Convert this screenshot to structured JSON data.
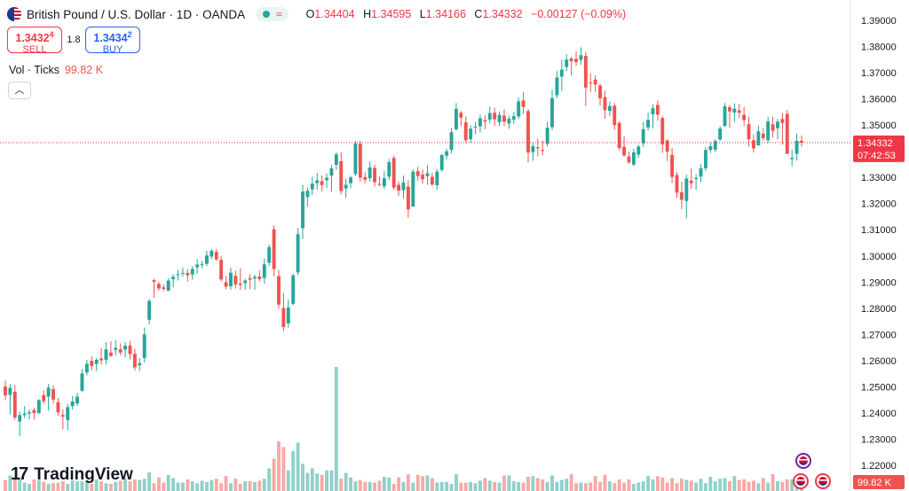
{
  "header": {
    "symbol_title": "British Pound / U.S. Dollar · 1D · OANDA",
    "ohlc": {
      "o_label": "O",
      "o": "1.34404",
      "h_label": "H",
      "h": "1.34595",
      "l_label": "L",
      "l": "1.34166",
      "c_label": "C",
      "c": "1.34332",
      "change": "−0.00127 (−0.09%)"
    }
  },
  "trade": {
    "sell_price": "1.3432",
    "sell_sup": "4",
    "sell_label": "SELL",
    "spread": "1.8",
    "buy_price": "1.3434",
    "buy_sup": "2",
    "buy_label": "BUY"
  },
  "volume_legend": {
    "label": "Vol · Ticks",
    "value": "99.82 K"
  },
  "icons": {
    "collapse": "chevron-up-icon",
    "symbol": "gbp-usd-flag-icon",
    "event": "us-flag-event-icon"
  },
  "price_axis": {
    "last_price": "1.34332",
    "countdown": "07:42:53",
    "volume_badge": "99.82 K"
  },
  "branding": {
    "logo_text": "TradingView"
  },
  "colors": {
    "up": "#26a69a",
    "down": "#ef5350",
    "vol_up": "#8fd1c9",
    "vol_down": "#f7a9a7",
    "last_price_line": "#f23645",
    "axis_text": "#131722"
  },
  "chart_data": {
    "type": "candlestick",
    "y_axis_ticks": [
      "1.39000",
      "1.38000",
      "1.37000",
      "1.36000",
      "1.35000",
      "1.34000",
      "1.33000",
      "1.32000",
      "1.31000",
      "1.30000",
      "1.29000",
      "1.28000",
      "1.27000",
      "1.26000",
      "1.25000",
      "1.24000",
      "1.23000",
      "1.22000"
    ],
    "ylim": [
      1.2125,
      1.3935
    ],
    "last_price": 1.34332,
    "ohlc": [
      [
        1.2501,
        1.2524,
        1.2449,
        1.2467
      ],
      [
        1.2469,
        1.251,
        1.2394,
        1.2496
      ],
      [
        1.2481,
        1.2507,
        1.2374,
        1.2383
      ],
      [
        1.2367,
        1.2406,
        1.2311,
        1.2392
      ],
      [
        1.2392,
        1.2426,
        1.2381,
        1.2398
      ],
      [
        1.2398,
        1.2413,
        1.2376,
        1.2403
      ],
      [
        1.2411,
        1.242,
        1.2375,
        1.24
      ],
      [
        1.24,
        1.2453,
        1.2395,
        1.2449
      ],
      [
        1.2468,
        1.2486,
        1.2436,
        1.2445
      ],
      [
        1.2462,
        1.2511,
        1.2408,
        1.2497
      ],
      [
        1.2491,
        1.2505,
        1.2436,
        1.2451
      ],
      [
        1.2441,
        1.2457,
        1.2389,
        1.2402
      ],
      [
        1.2392,
        1.2414,
        1.2338,
        1.2386
      ],
      [
        1.2373,
        1.2434,
        1.2334,
        1.2422
      ],
      [
        1.2426,
        1.2465,
        1.2413,
        1.2444
      ],
      [
        1.2436,
        1.2476,
        1.2427,
        1.2462
      ],
      [
        1.2485,
        1.2568,
        1.248,
        1.2551
      ],
      [
        1.2555,
        1.2603,
        1.2544,
        1.2588
      ],
      [
        1.2599,
        1.2617,
        1.2562,
        1.258
      ],
      [
        1.2587,
        1.261,
        1.256,
        1.2603
      ],
      [
        1.2608,
        1.2647,
        1.2585,
        1.2601
      ],
      [
        1.2603,
        1.2671,
        1.2585,
        1.2643
      ],
      [
        1.2631,
        1.2674,
        1.2614,
        1.2618
      ],
      [
        1.2641,
        1.2678,
        1.2619,
        1.2649
      ],
      [
        1.2643,
        1.2666,
        1.262,
        1.2631
      ],
      [
        1.2642,
        1.2671,
        1.2612,
        1.2657
      ],
      [
        1.2658,
        1.2676,
        1.2605,
        1.2625
      ],
      [
        1.2626,
        1.2646,
        1.2562,
        1.2574
      ],
      [
        1.2582,
        1.261,
        1.2561,
        1.259
      ],
      [
        1.261,
        1.2726,
        1.2593,
        1.27
      ],
      [
        1.2756,
        1.2836,
        1.2738,
        1.2828
      ],
      [
        1.2907,
        1.2912,
        1.2839,
        1.2901
      ],
      [
        1.2893,
        1.2901,
        1.2867,
        1.2876
      ],
      [
        1.288,
        1.2891,
        1.2865,
        1.2874
      ],
      [
        1.2867,
        1.2915,
        1.2866,
        1.2906
      ],
      [
        1.2911,
        1.293,
        1.288,
        1.292
      ],
      [
        1.293,
        1.2946,
        1.2906,
        1.293
      ],
      [
        1.2935,
        1.2956,
        1.2921,
        1.2935
      ],
      [
        1.2935,
        1.2949,
        1.2902,
        1.2926
      ],
      [
        1.2929,
        1.2961,
        1.2909,
        1.295
      ],
      [
        1.2957,
        1.2988,
        1.2932,
        1.2967
      ],
      [
        1.2965,
        1.2981,
        1.2953,
        1.2968
      ],
      [
        1.297,
        1.302,
        1.2962,
        1.3002
      ],
      [
        1.2998,
        1.3025,
        1.2987,
        1.302
      ],
      [
        1.3015,
        1.3026,
        1.2981,
        1.2987
      ],
      [
        1.2985,
        1.3,
        1.2902,
        1.291
      ],
      [
        1.2899,
        1.2925,
        1.2873,
        1.2883
      ],
      [
        1.2884,
        1.2955,
        1.287,
        1.2936
      ],
      [
        1.2924,
        1.2944,
        1.2875,
        1.2891
      ],
      [
        1.2894,
        1.2953,
        1.2871,
        1.2889
      ],
      [
        1.2896,
        1.2913,
        1.287,
        1.2906
      ],
      [
        1.2915,
        1.293,
        1.2872,
        1.2909
      ],
      [
        1.2914,
        1.2929,
        1.2871,
        1.292
      ],
      [
        1.2922,
        1.2944,
        1.2903,
        1.2911
      ],
      [
        1.2916,
        1.2991,
        1.2894,
        1.2968
      ],
      [
        1.2974,
        1.3044,
        1.2961,
        1.3034
      ],
      [
        1.3102,
        1.3117,
        1.2922,
        1.295
      ],
      [
        1.2923,
        1.2946,
        1.2798,
        1.2814
      ],
      [
        1.2801,
        1.2859,
        1.2713,
        1.2728
      ],
      [
        1.2742,
        1.2834,
        1.2726,
        1.2803
      ],
      [
        1.2817,
        1.2931,
        1.2811,
        1.2926
      ],
      [
        1.2937,
        1.3107,
        1.2927,
        1.3083
      ],
      [
        1.3106,
        1.3272,
        1.3065,
        1.3246
      ],
      [
        1.3225,
        1.3261,
        1.3188,
        1.3249
      ],
      [
        1.3254,
        1.3302,
        1.3233,
        1.3276
      ],
      [
        1.3278,
        1.3317,
        1.3253,
        1.3289
      ],
      [
        1.3286,
        1.3307,
        1.3247,
        1.3271
      ],
      [
        1.3289,
        1.3315,
        1.3259,
        1.3299
      ],
      [
        1.3307,
        1.3347,
        1.3246,
        1.3335
      ],
      [
        1.3348,
        1.3396,
        1.3329,
        1.3388
      ],
      [
        1.3362,
        1.3396,
        1.3235,
        1.3248
      ],
      [
        1.3258,
        1.3295,
        1.3222,
        1.3272
      ],
      [
        1.3278,
        1.3307,
        1.3259,
        1.33
      ],
      [
        1.3313,
        1.3439,
        1.3306,
        1.343
      ],
      [
        1.3429,
        1.344,
        1.3284,
        1.3299
      ],
      [
        1.3301,
        1.3319,
        1.3278,
        1.3291
      ],
      [
        1.3297,
        1.3361,
        1.3284,
        1.3338
      ],
      [
        1.3336,
        1.3348,
        1.3265,
        1.3282
      ],
      [
        1.3275,
        1.3303,
        1.3266,
        1.3272
      ],
      [
        1.3266,
        1.3324,
        1.3255,
        1.3297
      ],
      [
        1.3303,
        1.337,
        1.329,
        1.3358
      ],
      [
        1.3374,
        1.3383,
        1.3252,
        1.3261
      ],
      [
        1.3272,
        1.3284,
        1.3229,
        1.325
      ],
      [
        1.3251,
        1.3308,
        1.3219,
        1.328
      ],
      [
        1.3265,
        1.329,
        1.3146,
        1.3178
      ],
      [
        1.3189,
        1.3331,
        1.3188,
        1.3322
      ],
      [
        1.3324,
        1.334,
        1.3287,
        1.3305
      ],
      [
        1.3311,
        1.333,
        1.3277,
        1.3293
      ],
      [
        1.3305,
        1.3346,
        1.3272,
        1.3316
      ],
      [
        1.3302,
        1.3318,
        1.3267,
        1.3273
      ],
      [
        1.327,
        1.3332,
        1.3254,
        1.3322
      ],
      [
        1.3329,
        1.339,
        1.3321,
        1.3386
      ],
      [
        1.3383,
        1.341,
        1.3368,
        1.34
      ],
      [
        1.3405,
        1.349,
        1.3391,
        1.3473
      ],
      [
        1.3484,
        1.3584,
        1.3479,
        1.3562
      ],
      [
        1.3547,
        1.3553,
        1.3496,
        1.3528
      ],
      [
        1.351,
        1.3532,
        1.3431,
        1.3442
      ],
      [
        1.3446,
        1.3499,
        1.3432,
        1.3486
      ],
      [
        1.3492,
        1.3513,
        1.3465,
        1.3494
      ],
      [
        1.3495,
        1.3541,
        1.3472,
        1.3526
      ],
      [
        1.3519,
        1.3538,
        1.3484,
        1.3514
      ],
      [
        1.3521,
        1.357,
        1.3506,
        1.3546
      ],
      [
        1.3547,
        1.3566,
        1.3497,
        1.3522
      ],
      [
        1.3511,
        1.3552,
        1.3497,
        1.3539
      ],
      [
        1.3536,
        1.356,
        1.3497,
        1.3513
      ],
      [
        1.3506,
        1.3536,
        1.3486,
        1.3524
      ],
      [
        1.3521,
        1.355,
        1.3504,
        1.3534
      ],
      [
        1.3533,
        1.3606,
        1.3523,
        1.359
      ],
      [
        1.3594,
        1.3626,
        1.3542,
        1.3569
      ],
      [
        1.3553,
        1.3561,
        1.3358,
        1.3395
      ],
      [
        1.3397,
        1.3434,
        1.3364,
        1.3419
      ],
      [
        1.3415,
        1.3447,
        1.3381,
        1.3411
      ],
      [
        1.3405,
        1.3441,
        1.3384,
        1.3401
      ],
      [
        1.3428,
        1.3512,
        1.3418,
        1.349
      ],
      [
        1.3492,
        1.3635,
        1.3481,
        1.3603
      ],
      [
        1.3614,
        1.3706,
        1.3602,
        1.3682
      ],
      [
        1.3685,
        1.375,
        1.363,
        1.3712
      ],
      [
        1.3722,
        1.3771,
        1.3706,
        1.375
      ],
      [
        1.3754,
        1.3761,
        1.369,
        1.3744
      ],
      [
        1.3753,
        1.3781,
        1.3727,
        1.3741
      ],
      [
        1.3749,
        1.3797,
        1.3731,
        1.3767
      ],
      [
        1.3764,
        1.378,
        1.3573,
        1.3643
      ],
      [
        1.3663,
        1.3698,
        1.3627,
        1.366
      ],
      [
        1.3674,
        1.369,
        1.3626,
        1.3655
      ],
      [
        1.3651,
        1.3657,
        1.3575,
        1.3602
      ],
      [
        1.3607,
        1.3631,
        1.3524,
        1.3557
      ],
      [
        1.3554,
        1.359,
        1.3534,
        1.3573
      ],
      [
        1.3574,
        1.3584,
        1.3482,
        1.35
      ],
      [
        1.3508,
        1.3513,
        1.3403,
        1.3412
      ],
      [
        1.3417,
        1.3457,
        1.3379,
        1.3384
      ],
      [
        1.338,
        1.3398,
        1.3351,
        1.3357
      ],
      [
        1.3349,
        1.341,
        1.3341,
        1.3396
      ],
      [
        1.3387,
        1.3425,
        1.3374,
        1.3418
      ],
      [
        1.343,
        1.3512,
        1.3416,
        1.3484
      ],
      [
        1.3491,
        1.3547,
        1.3479,
        1.352
      ],
      [
        1.3541,
        1.3579,
        1.3488,
        1.3564
      ],
      [
        1.3577,
        1.3594,
        1.3517,
        1.354
      ],
      [
        1.3527,
        1.3534,
        1.3394,
        1.3426
      ],
      [
        1.3441,
        1.3446,
        1.3363,
        1.3399
      ],
      [
        1.3386,
        1.3413,
        1.3279,
        1.3302
      ],
      [
        1.3309,
        1.3321,
        1.3223,
        1.3242
      ],
      [
        1.3243,
        1.3284,
        1.3179,
        1.3215
      ],
      [
        1.321,
        1.3311,
        1.3144,
        1.3296
      ],
      [
        1.3288,
        1.3335,
        1.3256,
        1.3278
      ],
      [
        1.3294,
        1.3312,
        1.3252,
        1.3298
      ],
      [
        1.3303,
        1.3351,
        1.3282,
        1.3335
      ],
      [
        1.3335,
        1.3416,
        1.3325,
        1.3405
      ],
      [
        1.3405,
        1.3433,
        1.3393,
        1.3419
      ],
      [
        1.3406,
        1.3446,
        1.3397,
        1.3439
      ],
      [
        1.3445,
        1.3496,
        1.3439,
        1.3487
      ],
      [
        1.3497,
        1.3584,
        1.3492,
        1.3572
      ],
      [
        1.3568,
        1.3576,
        1.349,
        1.3552
      ],
      [
        1.3548,
        1.3583,
        1.3512,
        1.3563
      ],
      [
        1.3556,
        1.3581,
        1.3526,
        1.3547
      ],
      [
        1.3539,
        1.3569,
        1.3497,
        1.3519
      ],
      [
        1.3503,
        1.3533,
        1.3418,
        1.3446
      ],
      [
        1.3442,
        1.3465,
        1.3395,
        1.3411
      ],
      [
        1.3422,
        1.3498,
        1.3422,
        1.3476
      ],
      [
        1.3467,
        1.3488,
        1.3441,
        1.345
      ],
      [
        1.3442,
        1.3532,
        1.3432,
        1.3514
      ],
      [
        1.3503,
        1.3532,
        1.3452,
        1.3478
      ],
      [
        1.3488,
        1.3524,
        1.3446,
        1.3513
      ],
      [
        1.3523,
        1.3547,
        1.3425,
        1.3508
      ],
      [
        1.3543,
        1.3558,
        1.339,
        1.339
      ],
      [
        1.337,
        1.3405,
        1.3342,
        1.3375
      ],
      [
        1.339,
        1.3467,
        1.3365,
        1.344
      ],
      [
        1.344,
        1.346,
        1.3417,
        1.3433
      ]
    ],
    "volume_max": 19.2,
    "volume": [
      1.7,
      2.4,
      2.0,
      1.8,
      1.3,
      1.1,
      1.8,
      1.7,
      1.4,
      1.1,
      1.2,
      1.3,
      1.5,
      1.1,
      1.7,
      1.5,
      1.5,
      1.5,
      1.1,
      1.8,
      1.5,
      1.2,
      1.1,
      1.4,
      1.6,
      1.9,
      1.5,
      1.8,
      1.7,
      1.9,
      2.9,
      1.2,
      2.1,
      1.3,
      2.5,
      2.0,
      1.3,
      1.3,
      1.8,
      1.5,
      1.2,
      1.6,
      1.4,
      1.7,
      1.9,
      1.2,
      2.3,
      1.2,
      1.9,
      1.1,
      1.5,
      1.5,
      1.4,
      1.6,
      1.9,
      3.5,
      5.0,
      7.7,
      6.8,
      3.2,
      6.2,
      7.5,
      4.2,
      2.8,
      3.5,
      2.7,
      2.5,
      3.2,
      3.2,
      19.2,
      1.9,
      2.8,
      2.1,
      1.5,
      1.7,
      1.4,
      1.4,
      1.3,
      1.6,
      2.2,
      2.1,
      1.1,
      2.1,
      1.4,
      2.6,
      1.3,
      2.5,
      2.3,
      2.4,
      2.0,
      1.3,
      1.4,
      1.4,
      1.1,
      2.6,
      1.3,
      1.3,
      1.4,
      1.2,
      1.6,
      2.0,
      1.6,
      1.4,
      1.3,
      2.4,
      2.4,
      1.5,
      1.4,
      1.3,
      2.2,
      2.3,
      2.0,
      1.8,
      1.4,
      2.4,
      1.4,
      1.7,
      1.9,
      2.6,
      1.2,
      1.3,
      1.2,
      1.3,
      2.3,
      1.4,
      2.5,
      1.5,
      1.2,
      1.8,
      1.3,
      1.8,
      1.1,
      1.3,
      1.5,
      2.3,
      1.8,
      2.3,
      2.1,
      1.3,
      2.0,
      1.2,
      1.9,
      1.7,
      1.6,
      1.3,
      1.9,
      1.2,
      2.2,
      1.5,
      1.9,
      2.0,
      1.5,
      2.3,
      1.7,
      1.8,
      1.4,
      1.6,
      1.2,
      2.0,
      1.3,
      2.6,
      1.5,
      1.4,
      1.8,
      1.8,
      1.1,
      1.9
    ]
  }
}
